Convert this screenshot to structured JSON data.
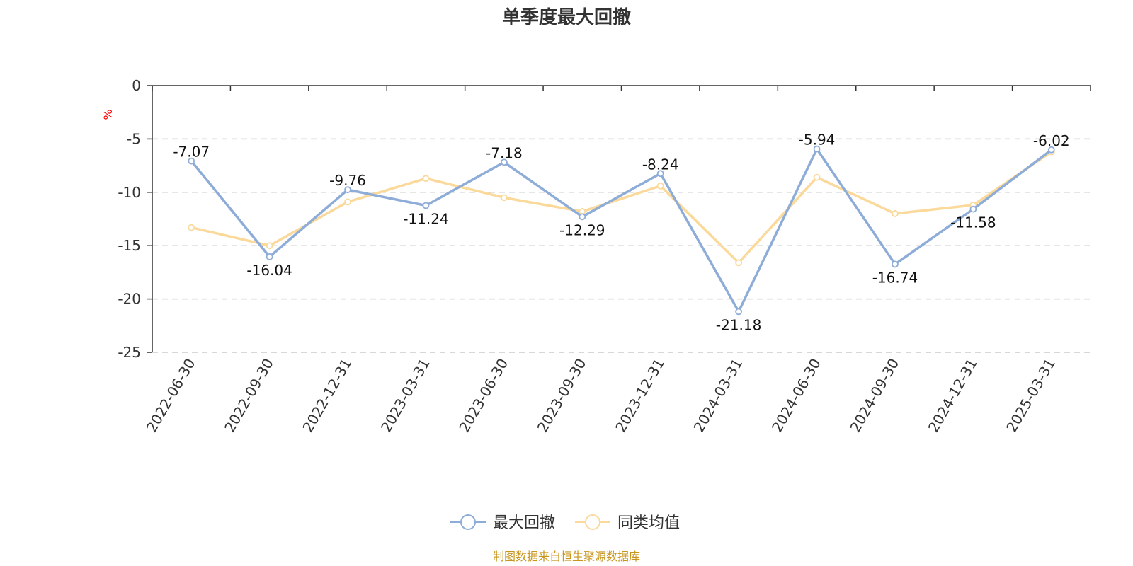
{
  "colors": {
    "series1": "#8eacd8",
    "series2": "#fad99a",
    "source": "#c8961e",
    "unit": "#ff0000"
  },
  "chart_data": {
    "type": "line",
    "title": "单季度最大回撤",
    "ylabel": "%",
    "ylim": [
      -25,
      0
    ],
    "yticks": [
      0,
      -5,
      -10,
      -15,
      -20,
      -25
    ],
    "categories": [
      "2022-06-30",
      "2022-09-30",
      "2022-12-31",
      "2023-03-31",
      "2023-06-30",
      "2023-09-30",
      "2023-12-31",
      "2024-03-31",
      "2024-06-30",
      "2024-09-30",
      "2024-12-31",
      "2025-03-31"
    ],
    "grid": true,
    "legend_position": "bottom",
    "series": [
      {
        "name": "最大回撤",
        "values": [
          -7.07,
          -16.04,
          -9.76,
          -11.24,
          -7.18,
          -12.29,
          -8.24,
          -21.18,
          -5.94,
          -16.74,
          -11.58,
          -6.02
        ],
        "labels": [
          "-7.07",
          "-16.04",
          "-9.76",
          "-11.24",
          "-7.18",
          "-12.29",
          "-8.24",
          "-21.18",
          "-5.94",
          "-16.74",
          "-11.58",
          "-6.02"
        ]
      },
      {
        "name": "同类均值",
        "values": [
          -13.3,
          -15.0,
          -10.9,
          -8.7,
          -10.5,
          -11.8,
          -9.4,
          -16.6,
          -8.6,
          -12.0,
          -11.2,
          -6.2
        ]
      }
    ]
  },
  "source_text": "制图数据来自恒生聚源数据库"
}
